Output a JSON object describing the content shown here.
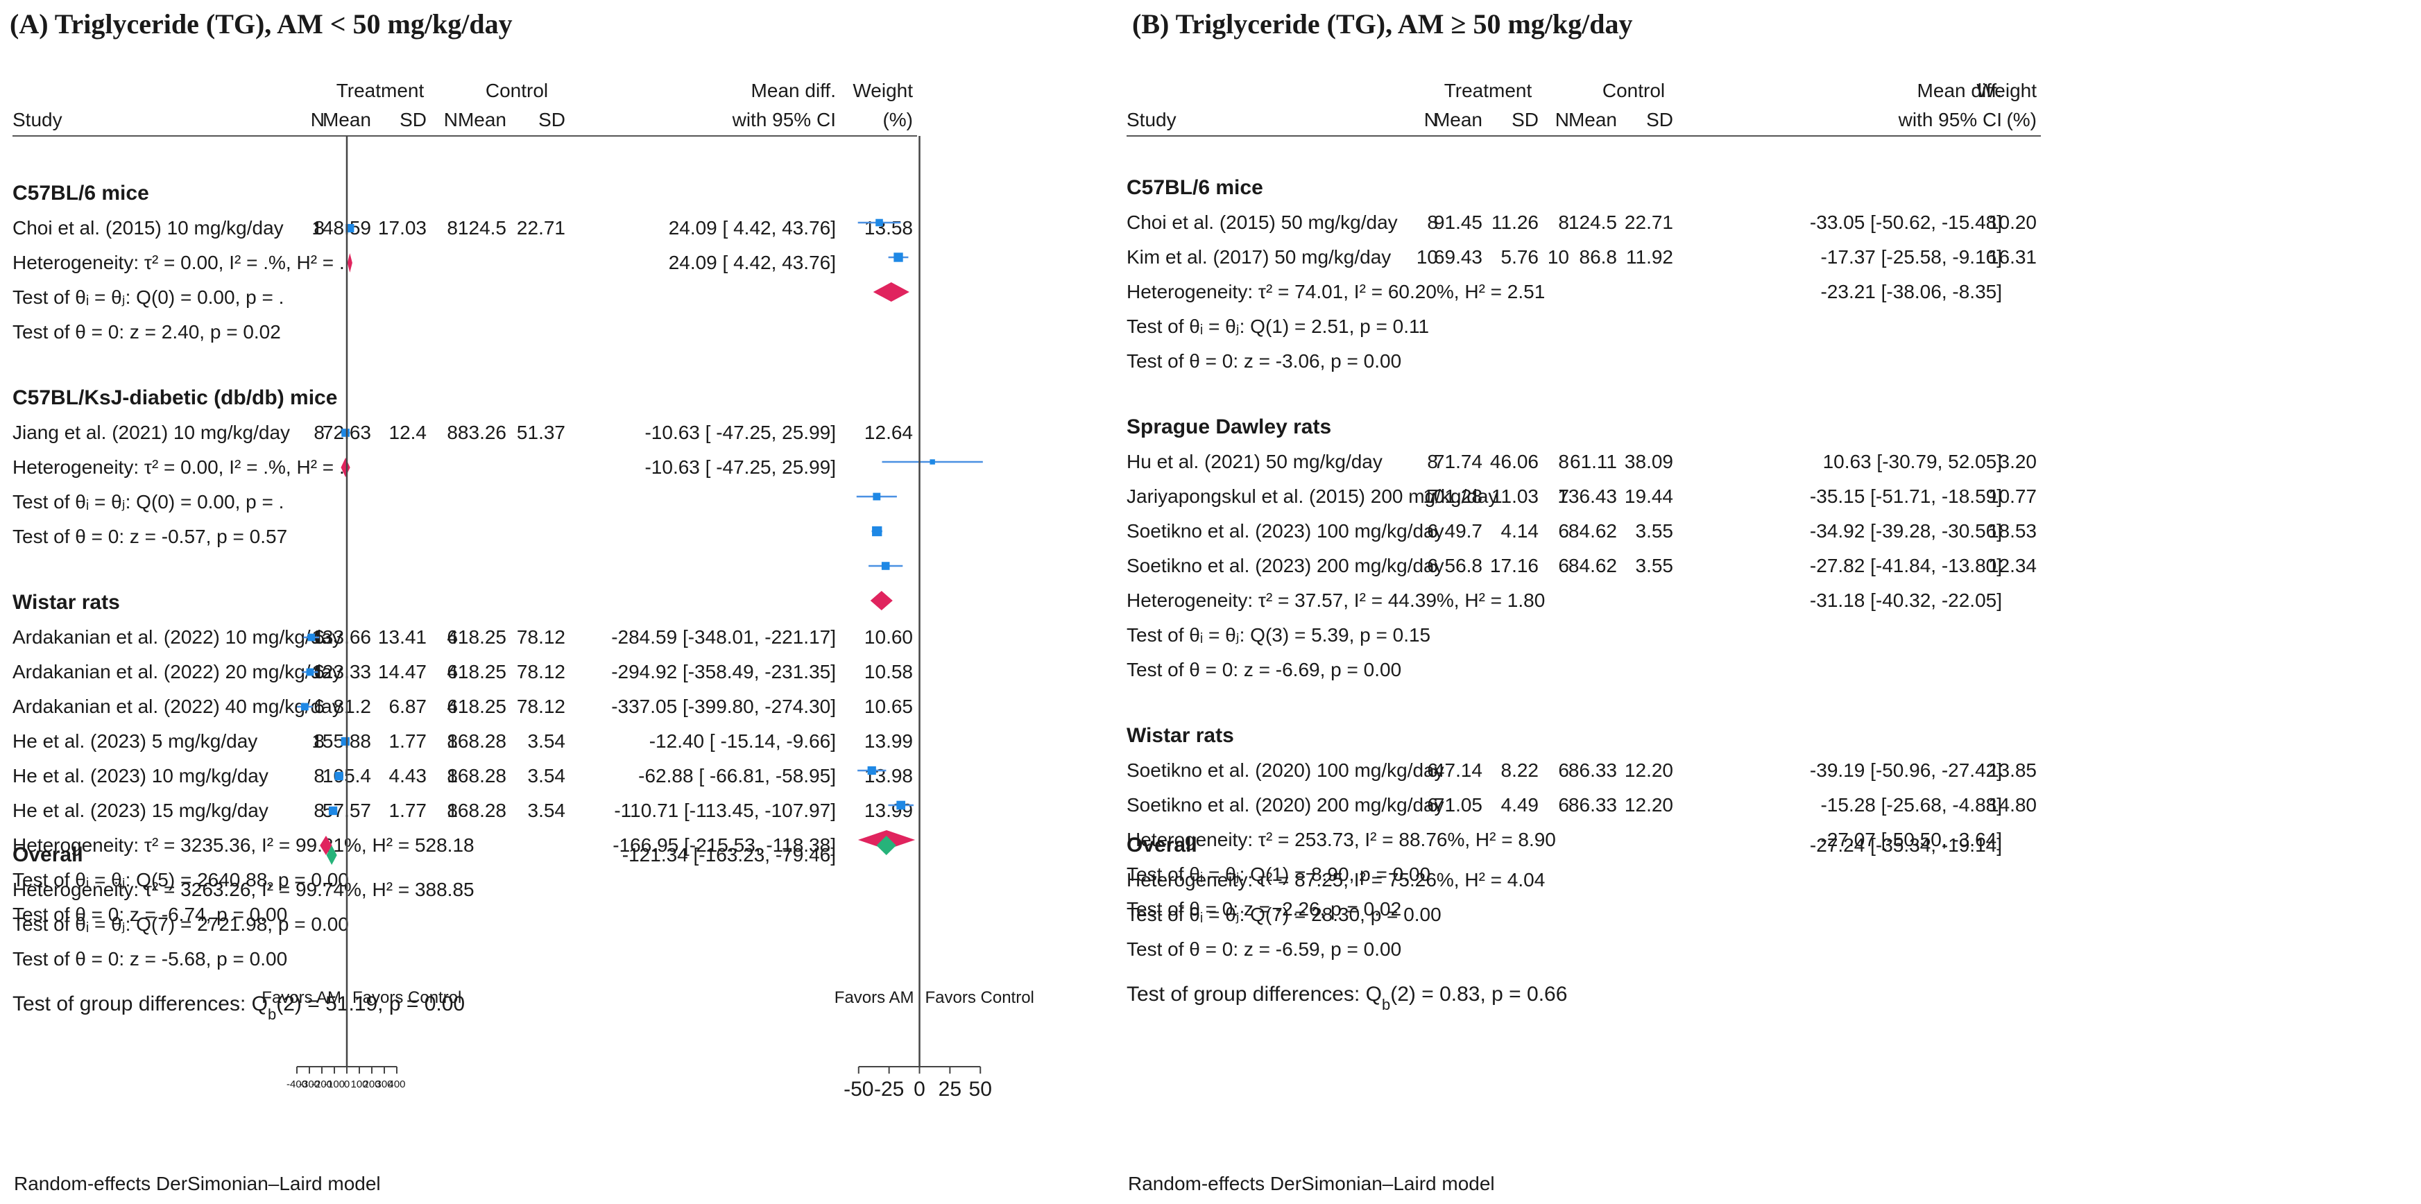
{
  "colors": {
    "marker": "#1e88e5",
    "ci_line": "#4a90e2",
    "subgroup_diamond": "#e0245e",
    "overall_diamond": "#26b37a",
    "axis": "#444444",
    "text": "#1a1a1a"
  },
  "chart_data": [
    {
      "type": "forest",
      "id": "A",
      "title": "(A) Triglyceride (TG), AM < 50 mg/kg/day",
      "headers": {
        "treatment": "Treatment",
        "control": "Control",
        "study": "Study",
        "n": "N",
        "mean": "Mean",
        "sd": "SD",
        "effect_1": "Mean diff.",
        "effect_2": "with 95% CI",
        "weight_1": "Weight",
        "weight_2": "(%)"
      },
      "xlim": [
        -400,
        400
      ],
      "ticks": [
        -400,
        -300,
        -200,
        -100,
        0,
        100,
        200,
        300,
        400
      ],
      "tick_labels": [
        "-400",
        "-300",
        "-200",
        "-100",
        "0",
        "100",
        "200",
        "300",
        "400"
      ],
      "favors_left": "Favors AM",
      "favors_right": "Favors Control",
      "groups": [
        {
          "name": "C57BL/6 mice",
          "studies": [
            {
              "label": "Choi et al. (2015) 10 mg/kg/day",
              "tn": "8",
              "tmean": "148.59",
              "tsd": "17.03",
              "cn": "8",
              "cmean": "124.5",
              "csd": "22.71",
              "md": 24.09,
              "lo": 4.42,
              "hi": 43.76,
              "ci_text": "24.09 [   4.42,    43.76]",
              "weight": "13.58"
            }
          ],
          "diamond": {
            "md": 24.09,
            "lo": 4.42,
            "hi": 43.76,
            "ci_text": "24.09 [   4.42,    43.76]"
          },
          "heterogeneity": "Heterogeneity: τ² = 0.00, I² = .%, H² = .",
          "test_homog": "Test of θᵢ = θⱼ: Q(0) = 0.00, p = .",
          "test_zero": "Test of θ = 0: z = 2.40, p = 0.02"
        },
        {
          "name": "C57BL/KsJ-diabetic (db/db) mice",
          "studies": [
            {
              "label": "Jiang et al. (2021) 10 mg/kg/day",
              "tn": "8",
              "tmean": "72.63",
              "tsd": "12.4",
              "cn": "8",
              "cmean": "83.26",
              "csd": "51.37",
              "md": -10.63,
              "lo": -47.25,
              "hi": 25.99,
              "ci_text": "-10.63 [ -47.25,    25.99]",
              "weight": "12.64"
            }
          ],
          "diamond": {
            "md": -10.63,
            "lo": -47.25,
            "hi": 25.99,
            "ci_text": "-10.63 [ -47.25,    25.99]"
          },
          "heterogeneity": "Heterogeneity: τ² = 0.00, I² = .%, H² = .",
          "test_homog": "Test of θᵢ = θⱼ: Q(0) = 0.00, p = .",
          "test_zero": "Test of θ = 0: z = -0.57, p = 0.57"
        },
        {
          "name": "Wistar rats",
          "studies": [
            {
              "label": "Ardakanian et al. (2022) 10 mg/kg/day",
              "tn": "6",
              "tmean": "133.66",
              "tsd": "13.41",
              "cn": "6",
              "cmean": "418.25",
              "csd": "78.12",
              "md": -284.59,
              "lo": -348.01,
              "hi": -221.17,
              "ci_text": "-284.59 [-348.01, -221.17]",
              "weight": "10.60"
            },
            {
              "label": "Ardakanian et al. (2022) 20 mg/kg/day",
              "tn": "6",
              "tmean": "123.33",
              "tsd": "14.47",
              "cn": "6",
              "cmean": "418.25",
              "csd": "78.12",
              "md": -294.92,
              "lo": -358.49,
              "hi": -231.35,
              "ci_text": "-294.92 [-358.49, -231.35]",
              "weight": "10.58"
            },
            {
              "label": "Ardakanian et al. (2022) 40 mg/kg/day",
              "tn": "6",
              "tmean": "81.2",
              "tsd": "6.87",
              "cn": "6",
              "cmean": "418.25",
              "csd": "78.12",
              "md": -337.05,
              "lo": -399.8,
              "hi": -274.3,
              "ci_text": "-337.05 [-399.80, -274.30]",
              "weight": "10.65"
            },
            {
              "label": "He et al. (2023) 5 mg/kg/day",
              "tn": "8",
              "tmean": "155.88",
              "tsd": "1.77",
              "cn": "8",
              "cmean": "168.28",
              "csd": "3.54",
              "md": -12.4,
              "lo": -15.14,
              "hi": -9.66,
              "ci_text": "-12.40 [ -15.14,    -9.66]",
              "weight": "13.99"
            },
            {
              "label": "He et al. (2023) 10 mg/kg/day",
              "tn": "8",
              "tmean": "105.4",
              "tsd": "4.43",
              "cn": "8",
              "cmean": "168.28",
              "csd": "3.54",
              "md": -62.88,
              "lo": -66.81,
              "hi": -58.95,
              "ci_text": "-62.88 [ -66.81,   -58.95]",
              "weight": "13.98"
            },
            {
              "label": "He et al. (2023) 15 mg/kg/day",
              "tn": "8",
              "tmean": "57.57",
              "tsd": "1.77",
              "cn": "8",
              "cmean": "168.28",
              "csd": "3.54",
              "md": -110.71,
              "lo": -113.45,
              "hi": -107.97,
              "ci_text": "-110.71 [-113.45, -107.97]",
              "weight": "13.99"
            }
          ],
          "diamond": {
            "md": -166.95,
            "lo": -215.53,
            "hi": -118.38,
            "ci_text": "-166.95 [-215.53, -118.38]"
          },
          "heterogeneity": "Heterogeneity: τ² = 3235.36, I² = 99.81%, H² = 528.18",
          "test_homog": "Test of θᵢ = θⱼ: Q(5) = 2640.88, p = 0.00",
          "test_zero": "Test of θ = 0: z = -6.74, p = 0.00"
        }
      ],
      "overall": {
        "label": "Overall",
        "md": -121.34,
        "lo": -163.23,
        "hi": -79.46,
        "ci_text": "-121.34 [-163.23,  -79.46]",
        "heterogeneity": "Heterogeneity: τ² = 3263.26, I² = 99.74%, H² = 388.85",
        "test_homog": "Test of θᵢ = θⱼ: Q(7) = 2721.98, p = 0.00",
        "test_zero": "Test of θ = 0: z = -5.68, p = 0.00"
      },
      "group_diff": "Test of group differences: Q_b(2) = 51.19, p = 0.00",
      "footnote": "Random-effects DerSimonian–Laird model"
    },
    {
      "type": "forest",
      "id": "B",
      "title": "(B) Triglyceride (TG), AM ≥ 50 mg/kg/day",
      "headers": {
        "treatment": "Treatment",
        "control": "Control",
        "study": "Study",
        "n": "N",
        "mean": "Mean",
        "sd": "SD",
        "effect_1": "Mean diff.",
        "effect_2": "with 95% CI",
        "weight_1": "Weight",
        "weight_2": "(%)"
      },
      "xlim": [
        -55,
        55
      ],
      "ticks": [
        -50,
        -25,
        0,
        25,
        50
      ],
      "tick_labels": [
        "-50",
        "-25",
        "0",
        "25",
        "50"
      ],
      "favors_left": "Favors AM",
      "favors_right": "Favors Control",
      "groups": [
        {
          "name": "C57BL/6 mice",
          "studies": [
            {
              "label": "Choi et al. (2015) 50 mg/kg/day",
              "tn": "8",
              "tmean": "91.45",
              "tsd": "11.26",
              "cn": "8",
              "cmean": "124.5",
              "csd": "22.71",
              "md": -33.05,
              "lo": -50.62,
              "hi": -15.48,
              "ci_text": "-33.05 [-50.62, -15.48]",
              "weight": "10.20"
            },
            {
              "label": "Kim et al. (2017) 50 mg/kg/day",
              "tn": "10",
              "tmean": "69.43",
              "tsd": "5.76",
              "cn": "10",
              "cmean": "86.8",
              "csd": "11.92",
              "md": -17.37,
              "lo": -25.58,
              "hi": -9.16,
              "ci_text": "-17.37 [-25.58,   -9.16]",
              "weight": "16.31"
            }
          ],
          "diamond": {
            "md": -23.21,
            "lo": -38.06,
            "hi": -8.35,
            "ci_text": "-23.21 [-38.06,   -8.35]"
          },
          "heterogeneity": "Heterogeneity: τ² = 74.01, I² = 60.20%, H² = 2.51",
          "test_homog": "Test of θᵢ = θⱼ: Q(1) = 2.51, p = 0.11",
          "test_zero": "Test of θ = 0: z = -3.06, p = 0.00"
        },
        {
          "name": "Sprague Dawley rats",
          "studies": [
            {
              "label": "Hu et al. (2021) 50 mg/kg/day",
              "tn": "8",
              "tmean": "71.74",
              "tsd": "46.06",
              "cn": "8",
              "cmean": "61.11",
              "csd": "38.09",
              "md": 10.63,
              "lo": -30.79,
              "hi": 52.05,
              "ci_text": "10.63 [-30.79,  52.05]",
              "weight": "3.20"
            },
            {
              "label": "Jariyapongskul et al. (2015) 200 mg/kg/day",
              "tn": "7",
              "tmean": "101.28",
              "tsd": "11.03",
              "cn": "7",
              "cmean": "136.43",
              "csd": "19.44",
              "md": -35.15,
              "lo": -51.71,
              "hi": -18.59,
              "ci_text": "-35.15 [-51.71, -18.59]",
              "weight": "10.77"
            },
            {
              "label": "Soetikno et al. (2023) 100 mg/kg/day",
              "tn": "6",
              "tmean": "49.7",
              "tsd": "4.14",
              "cn": "6",
              "cmean": "84.62",
              "csd": "3.55",
              "md": -34.92,
              "lo": -39.28,
              "hi": -30.56,
              "ci_text": "-34.92 [-39.28, -30.56]",
              "weight": "18.53"
            },
            {
              "label": "Soetikno et al. (2023) 200 mg/kg/day",
              "tn": "6",
              "tmean": "56.8",
              "tsd": "17.16",
              "cn": "6",
              "cmean": "84.62",
              "csd": "3.55",
              "md": -27.82,
              "lo": -41.84,
              "hi": -13.8,
              "ci_text": "-27.82 [-41.84, -13.80]",
              "weight": "12.34"
            }
          ],
          "diamond": {
            "md": -31.18,
            "lo": -40.32,
            "hi": -22.05,
            "ci_text": "-31.18 [-40.32, -22.05]"
          },
          "heterogeneity": "Heterogeneity: τ² = 37.57, I² = 44.39%, H² = 1.80",
          "test_homog": "Test of θᵢ = θⱼ: Q(3) = 5.39, p = 0.15",
          "test_zero": "Test of θ = 0: z = -6.69, p = 0.00"
        },
        {
          "name": "Wistar rats",
          "studies": [
            {
              "label": "Soetikno et al. (2020) 100 mg/kg/day",
              "tn": "6",
              "tmean": "47.14",
              "tsd": "8.22",
              "cn": "6",
              "cmean": "86.33",
              "csd": "12.20",
              "md": -39.19,
              "lo": -50.96,
              "hi": -27.42,
              "ci_text": "-39.19 [-50.96, -27.42]",
              "weight": "13.85"
            },
            {
              "label": "Soetikno et al. (2020) 200 mg/kg/day",
              "tn": "6",
              "tmean": "71.05",
              "tsd": "4.49",
              "cn": "6",
              "cmean": "86.33",
              "csd": "12.20",
              "md": -15.28,
              "lo": -25.68,
              "hi": -4.88,
              "ci_text": "-15.28 [-25.68,   -4.88]",
              "weight": "14.80"
            }
          ],
          "diamond": {
            "md": -27.07,
            "lo": -50.5,
            "hi": -3.64,
            "ci_text": "-27.07 [-50.50,   -3.64]"
          },
          "heterogeneity": "Heterogeneity: τ² = 253.73, I² = 88.76%, H² = 8.90",
          "test_homog": "Test of θᵢ = θⱼ: Q(1) = 8.90, p = 0.00",
          "test_zero": "Test of θ = 0: z = -2.26, p = 0.02"
        }
      ],
      "overall": {
        "label": "Overall",
        "md": -27.24,
        "lo": -35.34,
        "hi": -19.14,
        "ci_text": "-27.24 [-35.34, -19.14]",
        "heterogeneity": "Heterogeneity: τ² = 87.25, I² = 75.26%, H² = 4.04",
        "test_homog": "Test of θᵢ = θⱼ: Q(7) = 28.30, p = 0.00",
        "test_zero": "Test of θ = 0: z = -6.59, p = 0.00"
      },
      "group_diff": "Test of group differences: Q_b(2) = 0.83, p = 0.66",
      "footnote": "Random-effects DerSimonian–Laird model"
    }
  ]
}
